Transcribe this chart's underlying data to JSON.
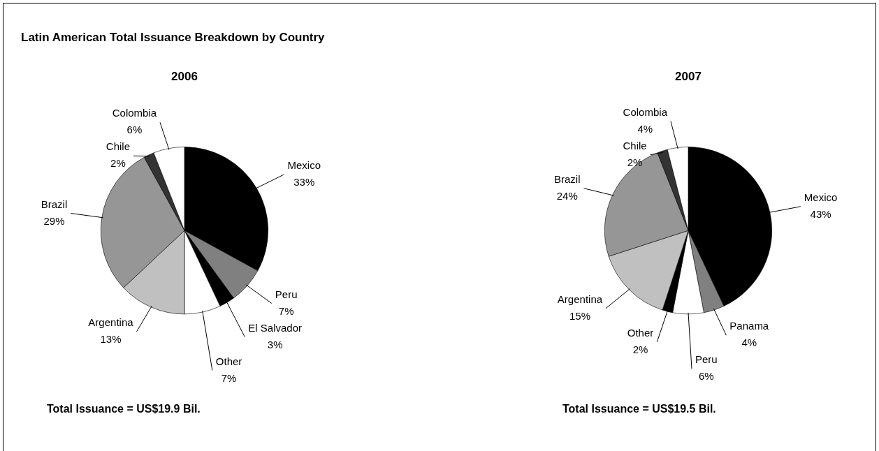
{
  "chart_data": [
    {
      "type": "pie",
      "title": "2006",
      "categories": [
        "Mexico",
        "Peru",
        "El Salvador",
        "Other",
        "Argentina",
        "Brazil",
        "Chile",
        "Colombia"
      ],
      "values": [
        33,
        7,
        3,
        7,
        13,
        29,
        2,
        6
      ],
      "value_labels": [
        "33%",
        "7%",
        "3%",
        "7%",
        "13%",
        "29%",
        "2%",
        "6%"
      ],
      "colors": [
        "#000000",
        "#808080",
        "#000000",
        "#ffffff",
        "#c0c0c0",
        "#969696",
        "#333333",
        "#ffffff"
      ],
      "annotations": [
        "Latin American Total Issuance Breakdown by Country",
        "Total Issuance = US$19.9 Bil."
      ]
    },
    {
      "type": "pie",
      "title": "2007",
      "categories": [
        "Mexico",
        "Panama",
        "Peru",
        "Other",
        "Argentina",
        "Brazil",
        "Chile",
        "Colombia"
      ],
      "values": [
        43,
        4,
        6,
        2,
        15,
        24,
        2,
        4
      ],
      "value_labels": [
        "43%",
        "4%",
        "6%",
        "2%",
        "15%",
        "24%",
        "2%",
        "4%"
      ],
      "colors": [
        "#000000",
        "#808080",
        "#ffffff",
        "#000000",
        "#c0c0c0",
        "#969696",
        "#333333",
        "#ffffff"
      ],
      "annotations": [
        "Total Issuance = US$19.5 Bil."
      ]
    }
  ]
}
